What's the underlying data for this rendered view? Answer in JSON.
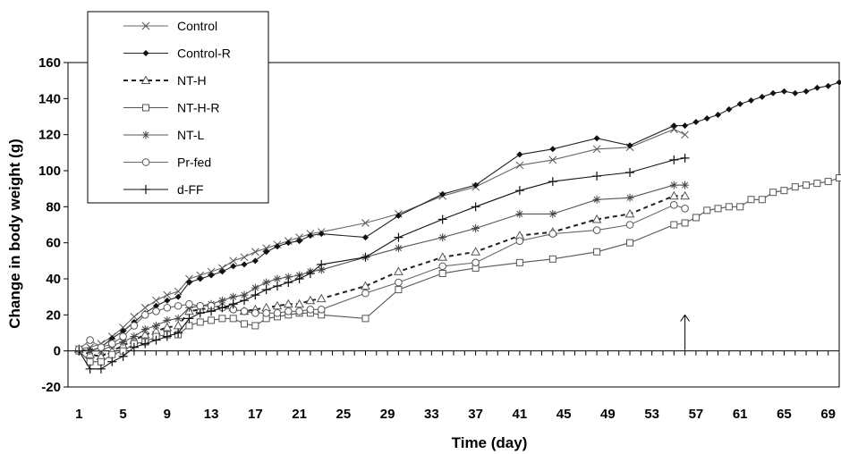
{
  "chart_data": {
    "type": "line",
    "xlabel": "Time (day)",
    "ylabel": "Change in body weight (g)",
    "xlim": [
      0,
      70
    ],
    "ylim": [
      -20,
      160
    ],
    "xticks": [
      1,
      5,
      9,
      13,
      17,
      21,
      25,
      29,
      33,
      37,
      41,
      45,
      49,
      53,
      57,
      61,
      65,
      69
    ],
    "yticks": [
      -20,
      0,
      20,
      40,
      60,
      80,
      100,
      120,
      140,
      160
    ],
    "legend_position": "top-left",
    "annotation": {
      "type": "arrow",
      "x": 56,
      "y_from": 0,
      "y_to": 10
    },
    "series": [
      {
        "name": "Control",
        "marker": "x",
        "dash": "solid",
        "points": [
          [
            1,
            1
          ],
          [
            2,
            2
          ],
          [
            3,
            4
          ],
          [
            4,
            8
          ],
          [
            5,
            13
          ],
          [
            6,
            19
          ],
          [
            7,
            24
          ],
          [
            8,
            28
          ],
          [
            9,
            31
          ],
          [
            10,
            33
          ],
          [
            11,
            40
          ],
          [
            12,
            42
          ],
          [
            13,
            44
          ],
          [
            14,
            46
          ],
          [
            15,
            50
          ],
          [
            16,
            52
          ],
          [
            17,
            55
          ],
          [
            18,
            57
          ],
          [
            19,
            59
          ],
          [
            20,
            61
          ],
          [
            21,
            63
          ],
          [
            22,
            65
          ],
          [
            23,
            66
          ],
          [
            27,
            71
          ],
          [
            30,
            76
          ],
          [
            34,
            86
          ],
          [
            37,
            91
          ],
          [
            41,
            103
          ],
          [
            44,
            106
          ],
          [
            48,
            112
          ],
          [
            51,
            113
          ],
          [
            55,
            123
          ],
          [
            56,
            120
          ]
        ]
      },
      {
        "name": "Control-R",
        "marker": "diamond",
        "dash": "solid",
        "points": [
          [
            1,
            1
          ],
          [
            2,
            0
          ],
          [
            3,
            2
          ],
          [
            4,
            7
          ],
          [
            5,
            11
          ],
          [
            6,
            16
          ],
          [
            7,
            21
          ],
          [
            8,
            25
          ],
          [
            9,
            28
          ],
          [
            10,
            30
          ],
          [
            11,
            38
          ],
          [
            12,
            40
          ],
          [
            13,
            42
          ],
          [
            14,
            44
          ],
          [
            15,
            47
          ],
          [
            16,
            48
          ],
          [
            17,
            50
          ],
          [
            18,
            55
          ],
          [
            19,
            58
          ],
          [
            20,
            60
          ],
          [
            21,
            61
          ],
          [
            22,
            64
          ],
          [
            23,
            65
          ],
          [
            27,
            63
          ],
          [
            30,
            75
          ],
          [
            34,
            87
          ],
          [
            37,
            92
          ],
          [
            41,
            109
          ],
          [
            44,
            112
          ],
          [
            48,
            118
          ],
          [
            51,
            114
          ],
          [
            55,
            125
          ],
          [
            56,
            125
          ],
          [
            57,
            127
          ],
          [
            58,
            129
          ],
          [
            59,
            131
          ],
          [
            60,
            134
          ],
          [
            61,
            137
          ],
          [
            62,
            139
          ],
          [
            63,
            141
          ],
          [
            64,
            143
          ],
          [
            65,
            144
          ],
          [
            66,
            143
          ],
          [
            67,
            144
          ],
          [
            68,
            146
          ],
          [
            69,
            147
          ],
          [
            70,
            149
          ]
        ]
      },
      {
        "name": "NT-H",
        "marker": "triangle",
        "dash": "dashed",
        "points": [
          [
            1,
            1
          ],
          [
            2,
            -2
          ],
          [
            3,
            -3
          ],
          [
            4,
            0
          ],
          [
            5,
            3
          ],
          [
            6,
            6
          ],
          [
            7,
            9
          ],
          [
            8,
            11
          ],
          [
            9,
            13
          ],
          [
            10,
            14
          ],
          [
            11,
            22
          ],
          [
            12,
            23
          ],
          [
            13,
            24
          ],
          [
            14,
            25
          ],
          [
            15,
            24
          ],
          [
            16,
            22
          ],
          [
            17,
            23
          ],
          [
            18,
            24
          ],
          [
            19,
            25
          ],
          [
            20,
            26
          ],
          [
            21,
            26
          ],
          [
            22,
            28
          ],
          [
            23,
            29
          ],
          [
            27,
            36
          ],
          [
            30,
            44
          ],
          [
            34,
            52
          ],
          [
            37,
            55
          ],
          [
            41,
            64
          ],
          [
            44,
            66
          ],
          [
            48,
            73
          ],
          [
            51,
            76
          ],
          [
            55,
            86
          ],
          [
            56,
            86
          ]
        ]
      },
      {
        "name": "NT-H-R",
        "marker": "square",
        "dash": "solid",
        "points": [
          [
            1,
            0
          ],
          [
            2,
            -6
          ],
          [
            3,
            -6
          ],
          [
            4,
            -2
          ],
          [
            5,
            0
          ],
          [
            6,
            4
          ],
          [
            7,
            5
          ],
          [
            8,
            8
          ],
          [
            9,
            9
          ],
          [
            10,
            9
          ],
          [
            11,
            14
          ],
          [
            12,
            16
          ],
          [
            13,
            17
          ],
          [
            14,
            18
          ],
          [
            15,
            18
          ],
          [
            16,
            15
          ],
          [
            17,
            14
          ],
          [
            18,
            18
          ],
          [
            19,
            19
          ],
          [
            20,
            20
          ],
          [
            21,
            21
          ],
          [
            22,
            21
          ],
          [
            23,
            20
          ],
          [
            27,
            18
          ],
          [
            30,
            34
          ],
          [
            34,
            43
          ],
          [
            37,
            46
          ],
          [
            41,
            49
          ],
          [
            44,
            51
          ],
          [
            48,
            55
          ],
          [
            51,
            60
          ],
          [
            55,
            70
          ],
          [
            56,
            71
          ],
          [
            57,
            74
          ],
          [
            58,
            78
          ],
          [
            59,
            79
          ],
          [
            60,
            80
          ],
          [
            61,
            80
          ],
          [
            62,
            84
          ],
          [
            63,
            84
          ],
          [
            64,
            88
          ],
          [
            65,
            89
          ],
          [
            66,
            91
          ],
          [
            67,
            92
          ],
          [
            68,
            93
          ],
          [
            69,
            94
          ],
          [
            70,
            96
          ]
        ]
      },
      {
        "name": "NT-L",
        "marker": "asterisk",
        "dash": "solid",
        "points": [
          [
            1,
            1
          ],
          [
            2,
            0
          ],
          [
            3,
            0
          ],
          [
            4,
            3
          ],
          [
            5,
            5
          ],
          [
            6,
            8
          ],
          [
            7,
            12
          ],
          [
            8,
            14
          ],
          [
            9,
            17
          ],
          [
            10,
            18
          ],
          [
            11,
            24
          ],
          [
            12,
            25
          ],
          [
            13,
            26
          ],
          [
            14,
            28
          ],
          [
            15,
            30
          ],
          [
            16,
            31
          ],
          [
            17,
            35
          ],
          [
            18,
            38
          ],
          [
            19,
            40
          ],
          [
            20,
            41
          ],
          [
            21,
            42
          ],
          [
            22,
            44
          ],
          [
            23,
            45
          ],
          [
            27,
            52
          ],
          [
            30,
            57
          ],
          [
            34,
            63
          ],
          [
            37,
            68
          ],
          [
            41,
            76
          ],
          [
            44,
            76
          ],
          [
            48,
            84
          ],
          [
            51,
            85
          ],
          [
            55,
            92
          ],
          [
            56,
            92
          ]
        ]
      },
      {
        "name": "Pr-fed",
        "marker": "circle",
        "dash": "solid",
        "points": [
          [
            1,
            1
          ],
          [
            2,
            6
          ],
          [
            3,
            2
          ],
          [
            4,
            4
          ],
          [
            5,
            8
          ],
          [
            6,
            14
          ],
          [
            7,
            20
          ],
          [
            8,
            22
          ],
          [
            9,
            24
          ],
          [
            10,
            25
          ],
          [
            11,
            26
          ],
          [
            12,
            25
          ],
          [
            13,
            25
          ],
          [
            14,
            24
          ],
          [
            15,
            23
          ],
          [
            16,
            22
          ],
          [
            17,
            21
          ],
          [
            18,
            21
          ],
          [
            19,
            21
          ],
          [
            20,
            22
          ],
          [
            21,
            22
          ],
          [
            22,
            23
          ],
          [
            23,
            23
          ],
          [
            27,
            32
          ],
          [
            30,
            38
          ],
          [
            34,
            47
          ],
          [
            37,
            49
          ],
          [
            41,
            61
          ],
          [
            44,
            65
          ],
          [
            48,
            67
          ],
          [
            51,
            70
          ],
          [
            55,
            81
          ],
          [
            56,
            79
          ]
        ]
      },
      {
        "name": "d-FF",
        "marker": "plus",
        "dash": "solid",
        "points": [
          [
            1,
            0
          ],
          [
            2,
            -10
          ],
          [
            3,
            -10
          ],
          [
            4,
            -6
          ],
          [
            5,
            -3
          ],
          [
            6,
            2
          ],
          [
            7,
            4
          ],
          [
            8,
            6
          ],
          [
            9,
            8
          ],
          [
            10,
            10
          ],
          [
            11,
            18
          ],
          [
            12,
            21
          ],
          [
            13,
            22
          ],
          [
            14,
            24
          ],
          [
            15,
            26
          ],
          [
            16,
            28
          ],
          [
            17,
            31
          ],
          [
            18,
            34
          ],
          [
            19,
            36
          ],
          [
            20,
            38
          ],
          [
            21,
            40
          ],
          [
            22,
            43
          ],
          [
            23,
            48
          ],
          [
            27,
            52
          ],
          [
            30,
            63
          ],
          [
            34,
            73
          ],
          [
            37,
            80
          ],
          [
            41,
            89
          ],
          [
            44,
            94
          ],
          [
            48,
            97
          ],
          [
            51,
            99
          ],
          [
            55,
            106
          ],
          [
            56,
            107
          ]
        ]
      }
    ]
  }
}
